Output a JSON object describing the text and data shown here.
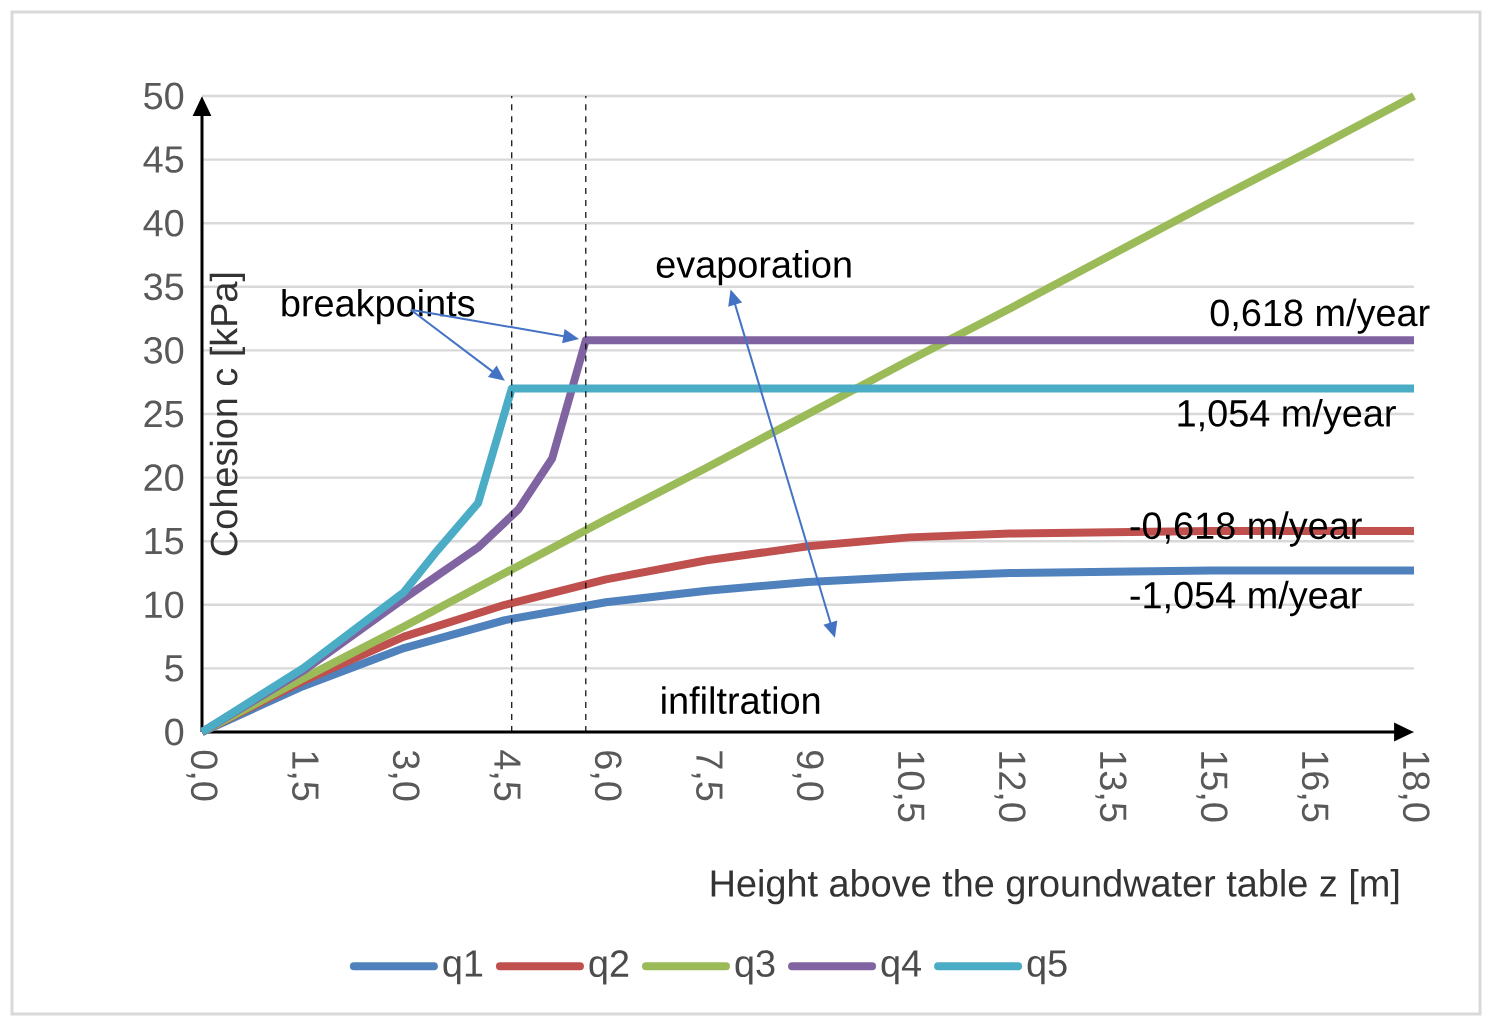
{
  "chart_data": {
    "type": "line",
    "xlabel": "Height above the groundwater table z [m]",
    "ylabel": "Cohesion c [kPa]",
    "xlim": [
      0,
      18
    ],
    "ylim": [
      0,
      50
    ],
    "xticks": [
      {
        "value": 0,
        "label": "0,0"
      },
      {
        "value": 1.5,
        "label": "1,5"
      },
      {
        "value": 3,
        "label": "3,0"
      },
      {
        "value": 4.5,
        "label": "4,5"
      },
      {
        "value": 6,
        "label": "6,0"
      },
      {
        "value": 7.5,
        "label": "7,5"
      },
      {
        "value": 9,
        "label": "9,0"
      },
      {
        "value": 10.5,
        "label": "10,5"
      },
      {
        "value": 12,
        "label": "12,0"
      },
      {
        "value": 13.5,
        "label": "13,5"
      },
      {
        "value": 15,
        "label": "15,0"
      },
      {
        "value": 16.5,
        "label": "16,5"
      },
      {
        "value": 18,
        "label": "18,0"
      }
    ],
    "yticks": [
      0,
      5,
      10,
      15,
      20,
      25,
      30,
      35,
      40,
      45,
      50
    ],
    "x": [
      0,
      1.5,
      3,
      4.5,
      6,
      7.5,
      9,
      10.5,
      12,
      13.5,
      15,
      16.5,
      18
    ],
    "series": [
      {
        "name": "q1",
        "color": "#4f81bd",
        "values": [
          0,
          3.6,
          6.6,
          8.8,
          10.2,
          11.1,
          11.8,
          12.2,
          12.5,
          12.6,
          12.7,
          12.7,
          12.7
        ]
      },
      {
        "name": "q2",
        "color": "#c0504d",
        "values": [
          0,
          4,
          7.5,
          10,
          12,
          13.5,
          14.6,
          15.3,
          15.6,
          15.7,
          15.8,
          15.8,
          15.8
        ]
      },
      {
        "name": "q3",
        "color": "#9bbb59",
        "values": [
          0,
          4.2,
          8.3,
          12.5,
          16.7,
          20.8,
          25,
          29.2,
          33.3,
          37.5,
          41.7,
          45.8,
          50
        ]
      },
      {
        "name": "q4",
        "color": "#8064a2",
        "x": [
          0,
          1.5,
          3,
          4.1,
          4.7,
          5.2,
          5.7,
          18
        ],
        "values": [
          0,
          4.8,
          10.5,
          14.5,
          17.5,
          21.5,
          30.8,
          30.8
        ]
      },
      {
        "name": "q5",
        "color": "#4bacc6",
        "x": [
          0,
          1.5,
          3,
          3.5,
          4.1,
          4.6,
          18
        ],
        "values": [
          0,
          5,
          11,
          14.3,
          18,
          27,
          27
        ]
      }
    ],
    "ref_lines": [
      {
        "axis": "x",
        "value": 4.6,
        "line_style": "dashed",
        "color": "#000000"
      },
      {
        "axis": "x",
        "value": 5.7,
        "line_style": "dashed",
        "color": "#000000"
      }
    ],
    "annotations": [
      {
        "text": "0,618 m/year",
        "x": 16.6,
        "y": 30.8
      },
      {
        "text": "1,054 m/year",
        "x": 16.1,
        "y": 27
      },
      {
        "text": "-0,618 m/year",
        "x": 15.5,
        "y": 15.8
      },
      {
        "text": "-1,054 m/year",
        "x": 15.5,
        "y": 12.7
      },
      {
        "text": "breakpoints",
        "x": 4.6,
        "y": 27
      },
      "evaporation",
      "infiltration"
    ],
    "grid": "y",
    "legend": "bottom",
    "marker": "none",
    "line_style": "solid"
  }
}
